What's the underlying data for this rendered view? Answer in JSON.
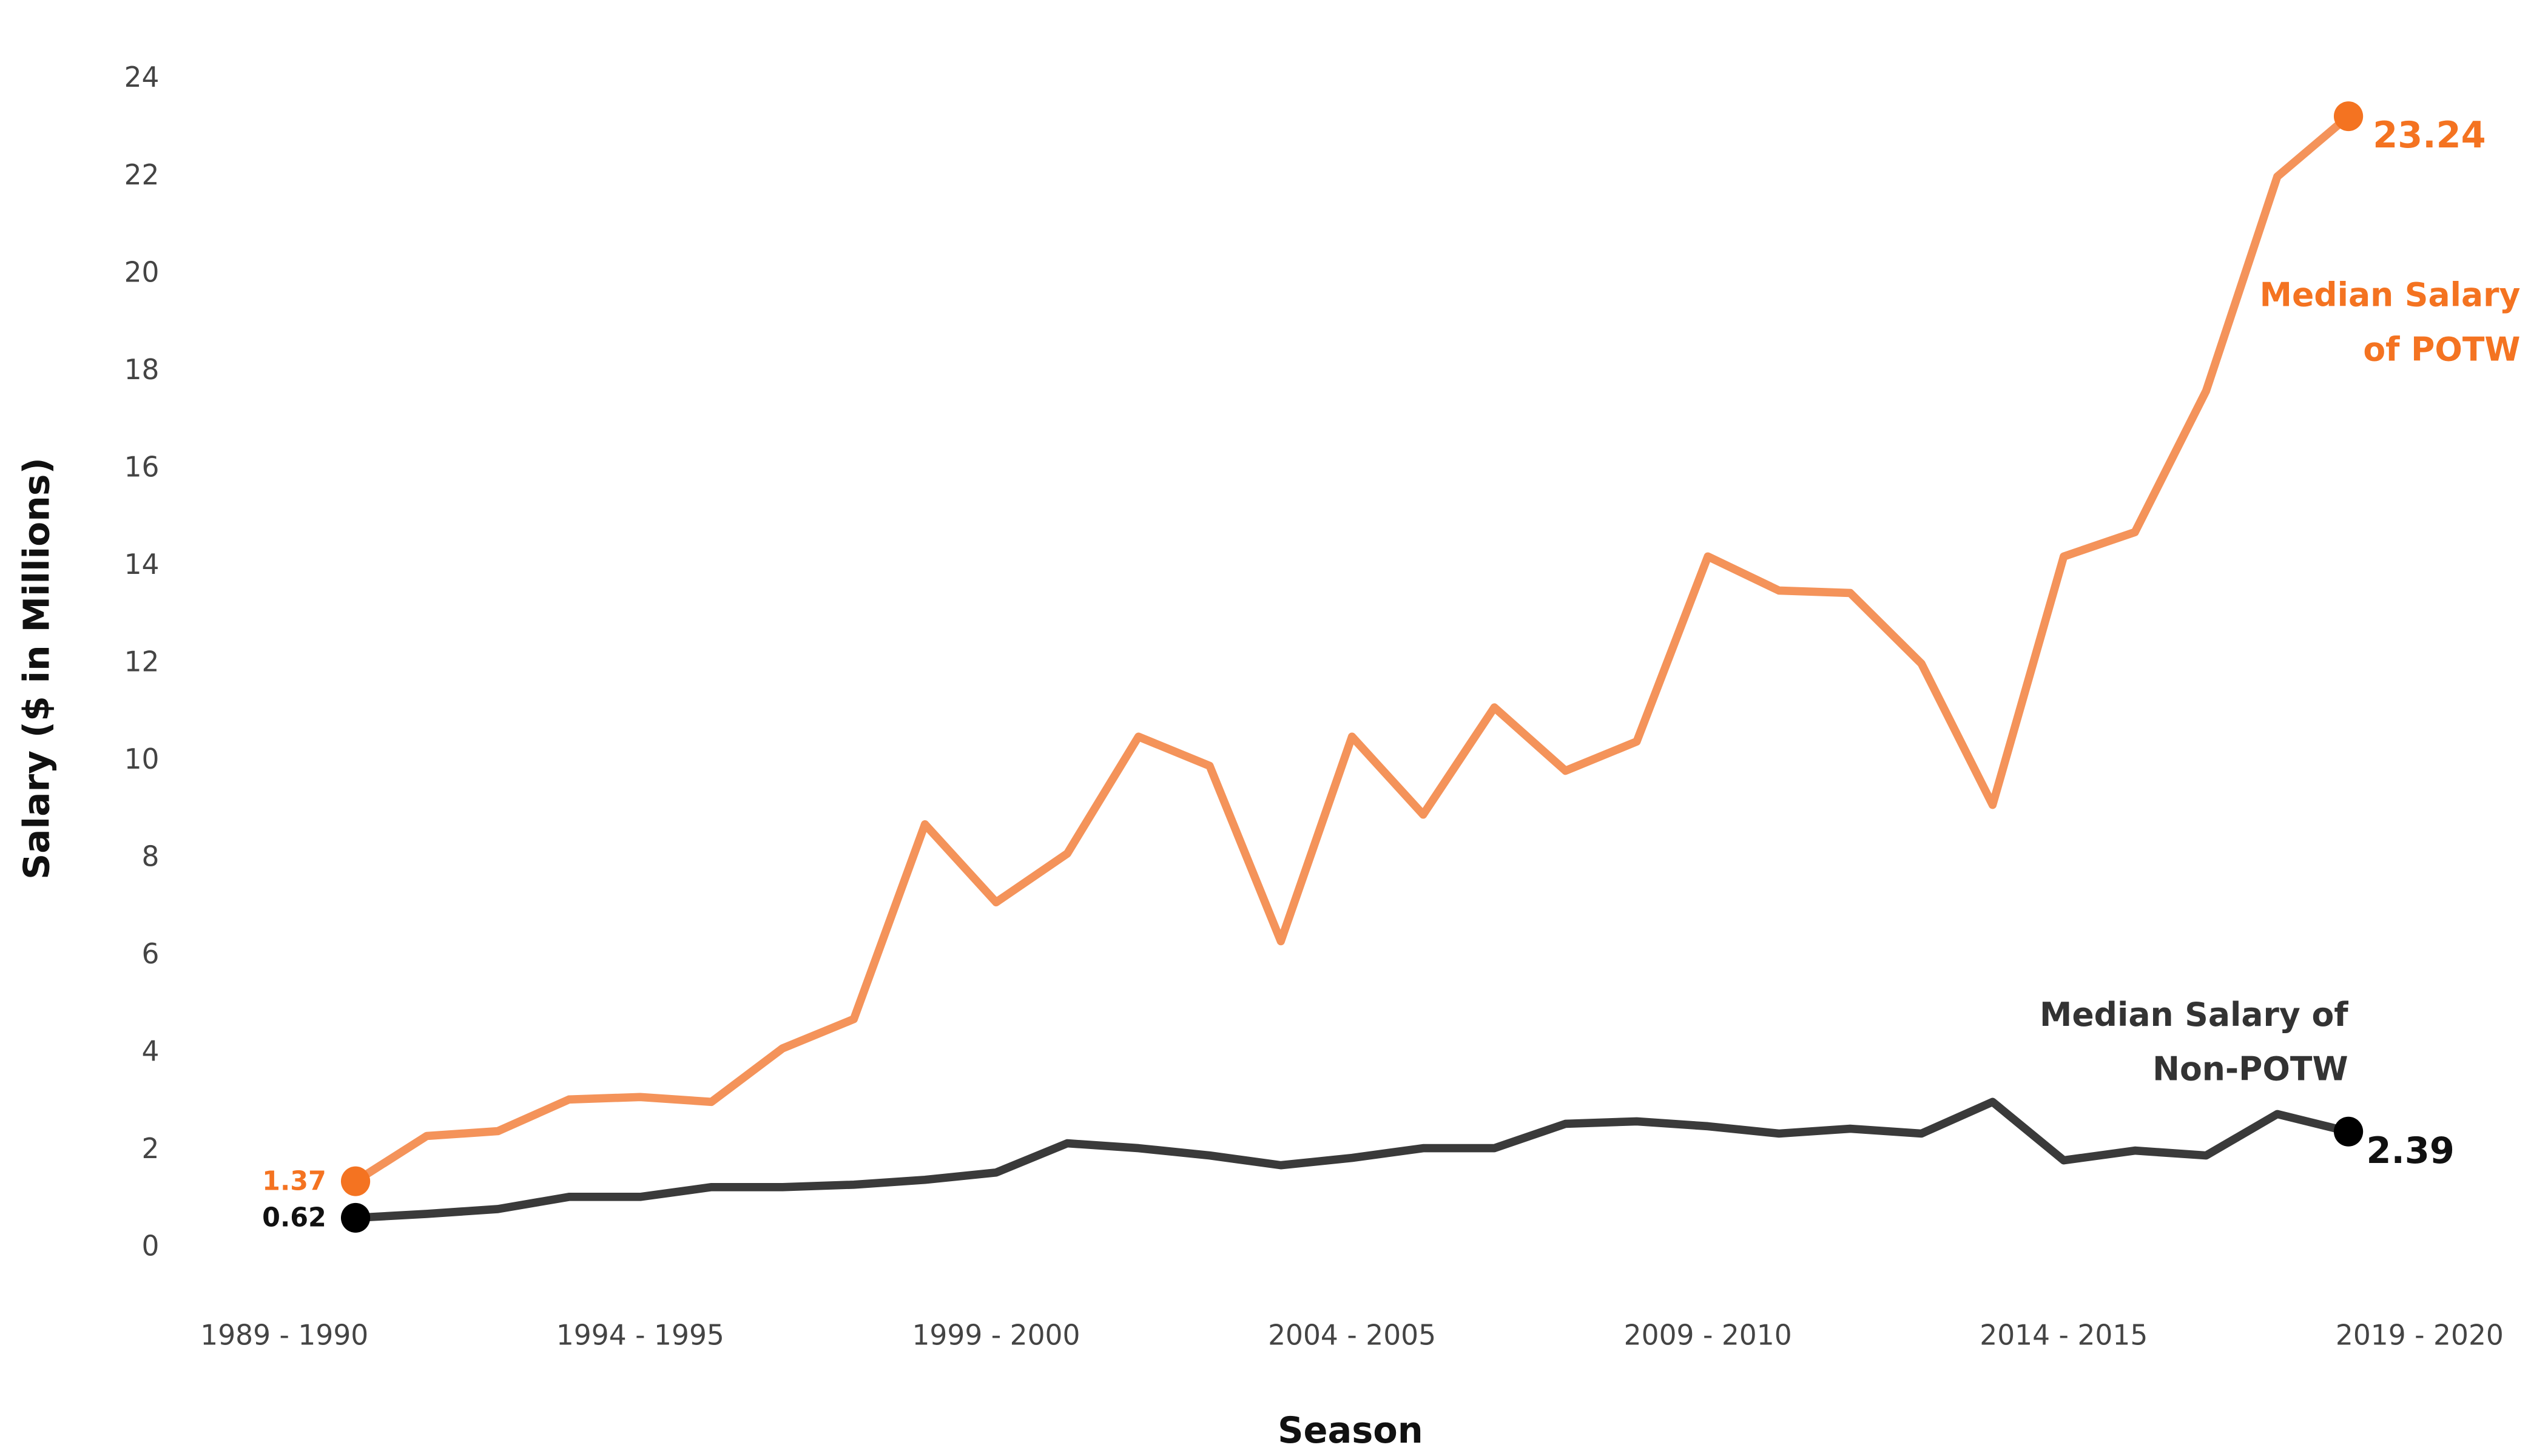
{
  "chart_data": {
    "type": "line",
    "x_label": "Season",
    "y_label": "Salary ($ in Millions)",
    "categories": [
      "1989 - 1990",
      null,
      null,
      null,
      null,
      "1994 - 1995",
      null,
      null,
      null,
      null,
      "1999 - 2000",
      null,
      null,
      null,
      null,
      "2004 - 2005",
      null,
      null,
      null,
      null,
      "2009 - 2010",
      null,
      null,
      null,
      null,
      "2014 - 2015",
      null,
      null,
      null,
      null,
      "2019 - 2020"
    ],
    "series": [
      {
        "color": "#f4935a",
        "marker_color": "#f47321",
        "values": [
          null,
          1.37,
          2.3,
          2.4,
          3.05,
          3.1,
          3.0,
          4.1,
          4.7,
          8.7,
          7.1,
          8.1,
          10.5,
          9.9,
          6.3,
          10.5,
          8.9,
          11.1,
          9.8,
          10.4,
          14.2,
          13.5,
          13.45,
          12.0,
          9.1,
          14.2,
          14.7,
          17.6,
          22.0,
          23.24,
          null
        ]
      },
      {
        "color": "#3a3a3a",
        "marker_color": "#000000",
        "values": [
          null,
          0.62,
          0.7,
          0.8,
          1.05,
          1.05,
          1.25,
          1.25,
          1.3,
          1.4,
          1.55,
          2.15,
          2.05,
          1.9,
          1.7,
          1.85,
          2.05,
          2.05,
          2.55,
          2.6,
          2.5,
          2.35,
          2.45,
          2.35,
          3.0,
          1.8,
          2.0,
          1.9,
          2.75,
          2.39,
          null
        ]
      }
    ],
    "annotations": [
      {
        "lines": [
          "Median Salary",
          "of POTW"
        ],
        "color": "#f47321"
      },
      {
        "lines": [
          "Median Salary of",
          "Non-POTW"
        ],
        "color": "#333333"
      }
    ],
    "ylim": [
      0,
      24
    ],
    "yticks": [
      0,
      2,
      4,
      6,
      8,
      10,
      12,
      14,
      16,
      18,
      20,
      22,
      24
    ],
    "grid": false
  }
}
